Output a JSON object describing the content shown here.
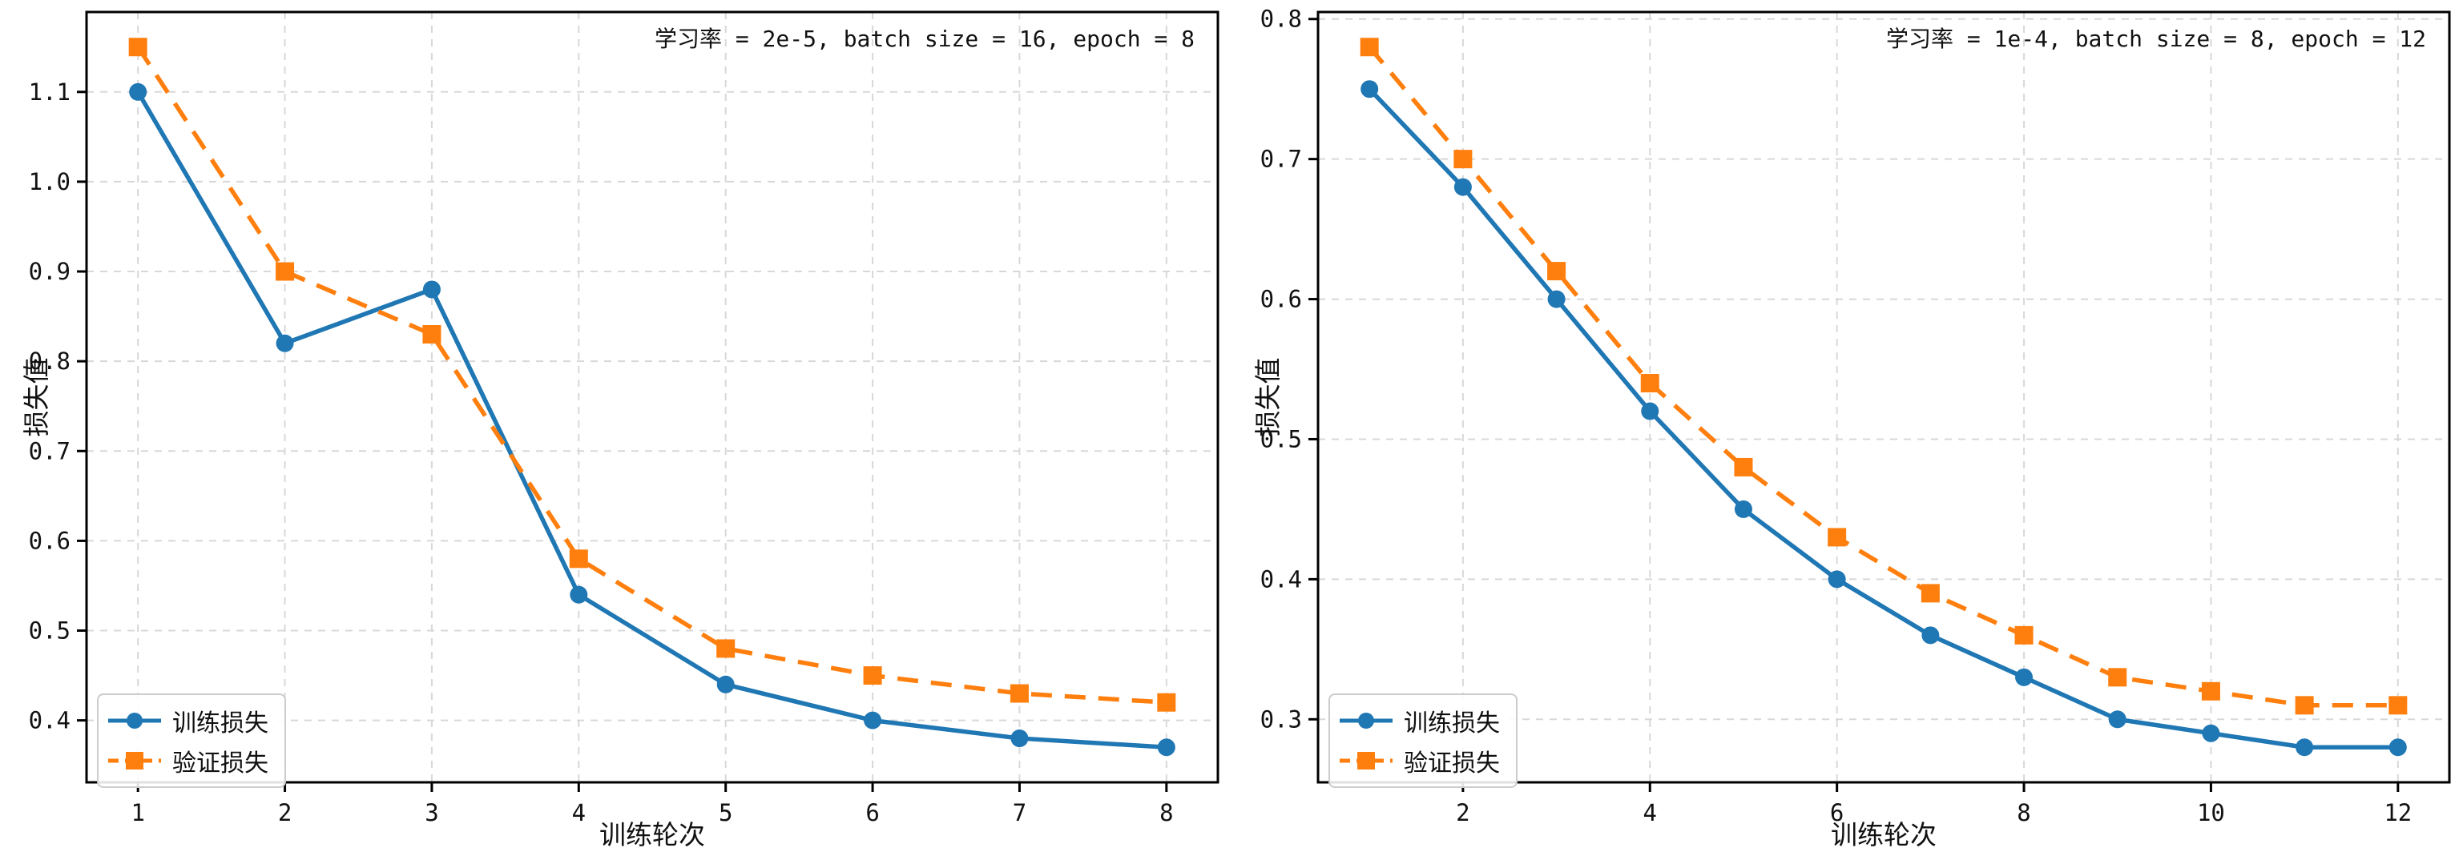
{
  "figure": {
    "background": "#ffffff",
    "grid_color": "#d8d8d8",
    "frame_color": "#000000",
    "legend_border_color": "#cccccc"
  },
  "chart_data": [
    {
      "type": "line",
      "title": "学习率 = 2e-5, batch size = 16, epoch = 8",
      "xlabel": "训练轮次",
      "ylabel": "损失值",
      "x": [
        1,
        2,
        3,
        4,
        5,
        6,
        7,
        8
      ],
      "series": [
        {
          "name": "训练损失",
          "color": "#1f77b4",
          "line_style": "solid",
          "marker": "circle",
          "values": [
            1.1,
            0.82,
            0.88,
            0.54,
            0.44,
            0.4,
            0.38,
            0.37
          ]
        },
        {
          "name": "验证损失",
          "color": "#ff7f0e",
          "line_style": "dashed",
          "marker": "square",
          "values": [
            1.15,
            0.9,
            0.83,
            0.58,
            0.48,
            0.45,
            0.43,
            0.42
          ]
        }
      ],
      "xticks": [
        1,
        2,
        3,
        4,
        5,
        6,
        7,
        8
      ],
      "yticks": [
        0.4,
        0.5,
        0.6,
        0.7,
        0.8,
        0.9,
        1.0,
        1.1
      ],
      "xlim": [
        0.65,
        8.35
      ],
      "ylim": [
        0.331,
        1.189
      ],
      "grid": true,
      "legend_position": "lower left"
    },
    {
      "type": "line",
      "title": "学习率 = 1e-4, batch size = 8, epoch = 12",
      "xlabel": "训练轮次",
      "ylabel": "损失值",
      "x": [
        1,
        2,
        3,
        4,
        5,
        6,
        7,
        8,
        9,
        10,
        11,
        12
      ],
      "series": [
        {
          "name": "训练损失",
          "color": "#1f77b4",
          "line_style": "solid",
          "marker": "circle",
          "values": [
            0.75,
            0.68,
            0.6,
            0.52,
            0.45,
            0.4,
            0.36,
            0.33,
            0.3,
            0.29,
            0.28,
            0.28
          ]
        },
        {
          "name": "验证损失",
          "color": "#ff7f0e",
          "line_style": "dashed",
          "marker": "square",
          "values": [
            0.78,
            0.7,
            0.62,
            0.54,
            0.48,
            0.43,
            0.39,
            0.36,
            0.33,
            0.32,
            0.31,
            0.31
          ]
        }
      ],
      "xticks": [
        2,
        4,
        6,
        8,
        10,
        12
      ],
      "yticks": [
        0.3,
        0.4,
        0.5,
        0.6,
        0.7,
        0.8
      ],
      "xlim": [
        0.45,
        12.55
      ],
      "ylim": [
        0.255,
        0.805
      ],
      "grid": true,
      "legend_position": "lower left"
    }
  ]
}
